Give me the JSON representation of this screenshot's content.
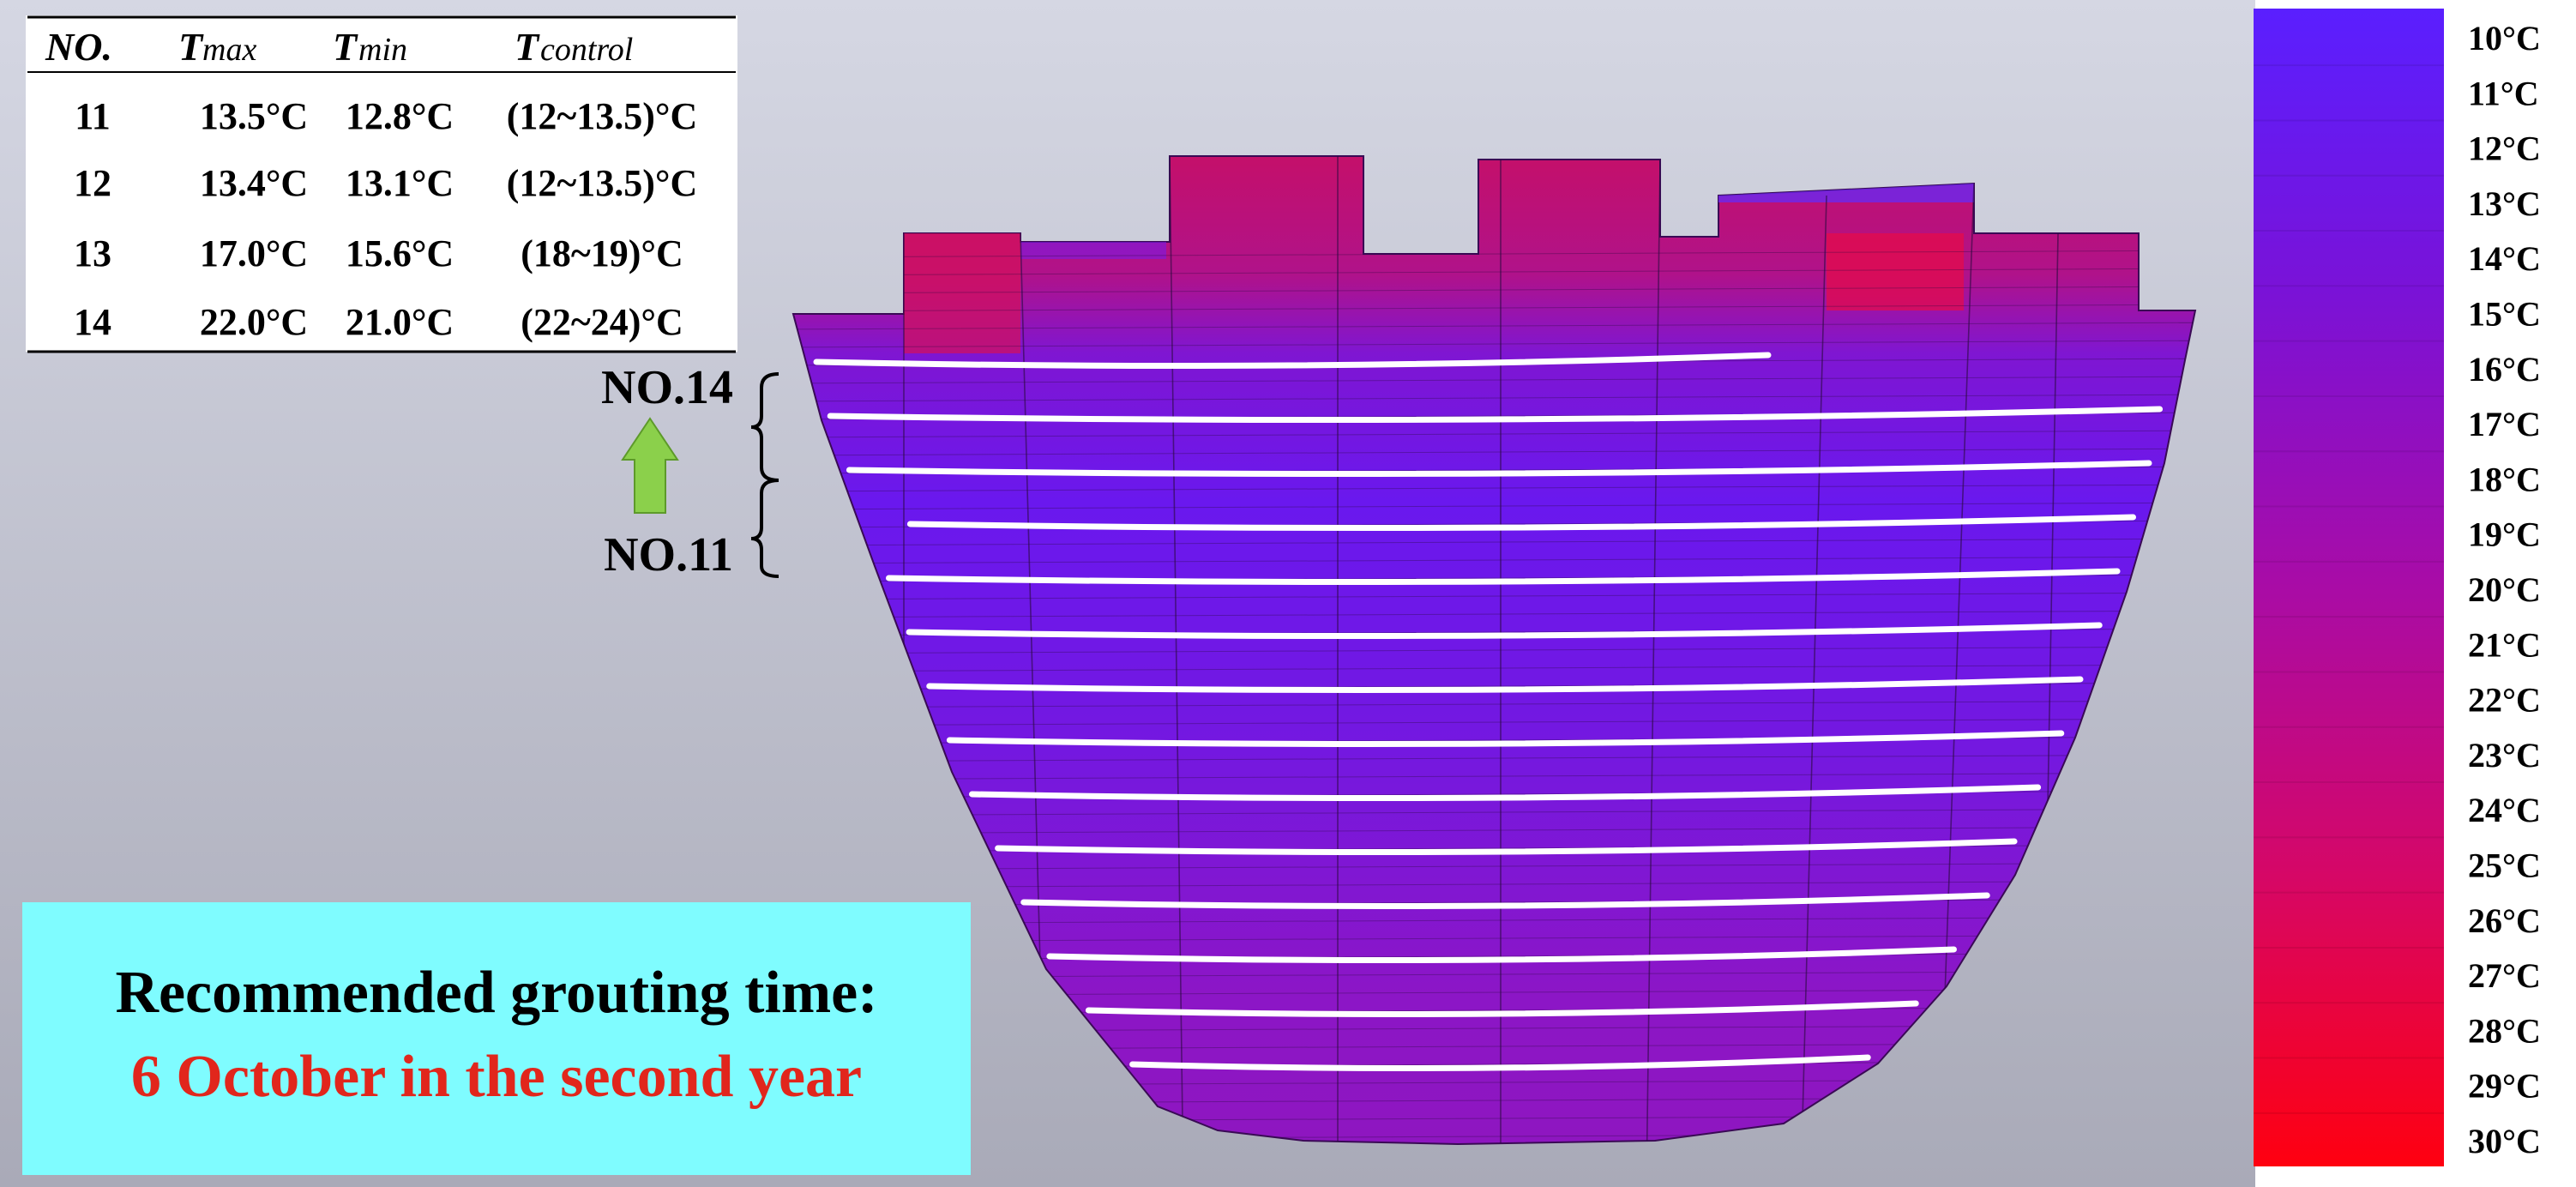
{
  "table": {
    "headers": {
      "no": "NO.",
      "tmax_letter": "T",
      "tmax_sub": "max",
      "tmin_letter": "T",
      "tmin_sub": "min",
      "tcontrol_letter": "T",
      "tcontrol_sub": "control"
    },
    "rows": [
      {
        "no": "11",
        "tmax": "13.5°C",
        "tmin": "12.8°C",
        "tcontrol": "(12~13.5)°C"
      },
      {
        "no": "12",
        "tmax": "13.4°C",
        "tmin": "13.1°C",
        "tcontrol": "(12~13.5)°C"
      },
      {
        "no": "13",
        "tmax": "17.0°C",
        "tmin": "15.6°C",
        "tcontrol": "(18~19)°C"
      },
      {
        "no": "14",
        "tmax": "22.0°C",
        "tmin": "21.0°C",
        "tcontrol": "(22~24)°C"
      }
    ]
  },
  "annotations": {
    "upper_label": "NO.14",
    "lower_label": "NO.11",
    "arrow_color": "#8bd04b"
  },
  "recommendation": {
    "line1": "Recommended grouting time:",
    "line2": "6 October in the second year",
    "line1_color": "#000000",
    "line2_color": "#e1261c",
    "box_color": "#7ffcff"
  },
  "legend": {
    "labels": [
      "10°C",
      "11°C",
      "12°C",
      "13°C",
      "14°C",
      "15°C",
      "16°C",
      "17°C",
      "18°C",
      "19°C",
      "20°C",
      "21°C",
      "22°C",
      "23°C",
      "24°C",
      "25°C",
      "26°C",
      "27°C",
      "28°C",
      "29°C",
      "30°C"
    ],
    "color_min": "#5a1fff",
    "color_max": "#ff0000"
  },
  "colors": {
    "background_top": "#d5d7e3",
    "background_bottom": "#a9aab8",
    "cool_concrete": "#7a1ae6",
    "warm_concrete": "#c2106e",
    "cooling_pipe": "#ffffff"
  }
}
